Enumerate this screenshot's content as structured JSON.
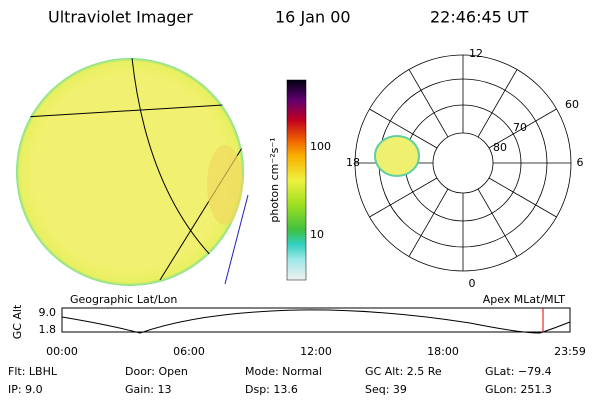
{
  "header": {
    "title": "Ultraviolet Imager",
    "date": "16 Jan 00",
    "time": "22:46:45 UT"
  },
  "colorbar": {
    "label": "photon cm⁻²s⁻¹",
    "ticks": [
      "100",
      "10"
    ]
  },
  "polar": {
    "mlt_labels": [
      "12",
      "6",
      "0",
      "18"
    ],
    "lat_labels": [
      "60",
      "70",
      "80"
    ]
  },
  "panel_labels": {
    "left": "Geographic Lat/Lon",
    "right": "Apex MLat/MLT"
  },
  "timeline": {
    "ylabel": "GC Alt",
    "yticks": [
      "9.0",
      "1.8"
    ],
    "xticks": [
      "00:00",
      "06:00",
      "12:00",
      "18:00",
      "23:59"
    ]
  },
  "footer": {
    "rows": [
      [
        "Flt: LBHL",
        "Door: Open",
        "Mode: Normal",
        "GC Alt: 2.5 Re",
        "GLat: −79.4"
      ],
      [
        "IP: 9.0",
        "Gain: 13",
        "Dsp: 13.6",
        "Seq: 39",
        "GLon: 251.3"
      ]
    ]
  }
}
